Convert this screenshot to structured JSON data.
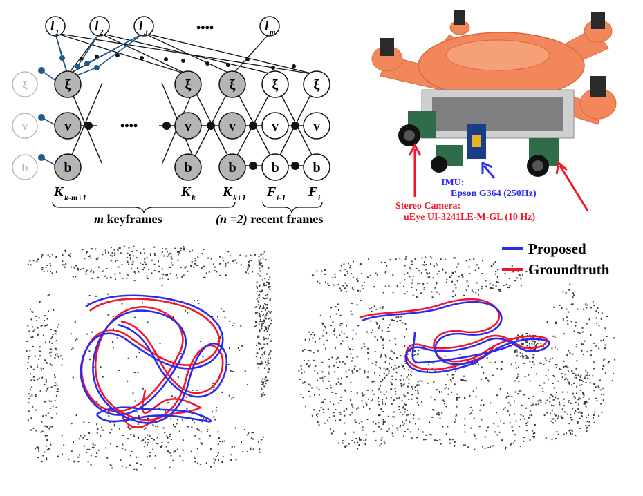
{
  "factor_graph": {
    "landmarks": {
      "l1": "1",
      "l2": "2",
      "l3": "3",
      "lm": "m",
      "letter": "l",
      "ellipsis": "••••"
    },
    "node_labels": {
      "pose": "ξ",
      "velocity": "v",
      "bias": "b"
    },
    "middle_ellipsis": "••••",
    "frames": {
      "kkm1": {
        "letter": "K",
        "sub": "k-m+1"
      },
      "kk": {
        "letter": "K",
        "sub": "k"
      },
      "kk1": {
        "letter": "K",
        "sub": "k+1"
      },
      "fi1": {
        "letter": "F",
        "sub": "i-1"
      },
      "fi": {
        "letter": "F",
        "sub": "i"
      }
    },
    "keyframes_label": {
      "m": "m",
      "text": " keyframes"
    },
    "recent_label": {
      "n": "(n =2)",
      "text": " recent frames"
    }
  },
  "photo": {
    "imu_label": "IMU:",
    "imu_model": "Epson G364 (250Hz)",
    "camera_label": "Stereo Camera:",
    "camera_model": "uEye UI-3241LE-M-GL (10 Hz)"
  },
  "legend": {
    "proposed": "Proposed",
    "groundtruth": "Groundtruth"
  },
  "colors": {
    "keyframe_fill": "#b5b5b5",
    "prior_gray": "#b8b8b8",
    "factor_blue": "#1f5a8c",
    "proposed": "#2b2bf0",
    "groundtruth": "#f0162b",
    "drone_orange": "#f2875b",
    "pointcloud": "#3a3a3a"
  }
}
